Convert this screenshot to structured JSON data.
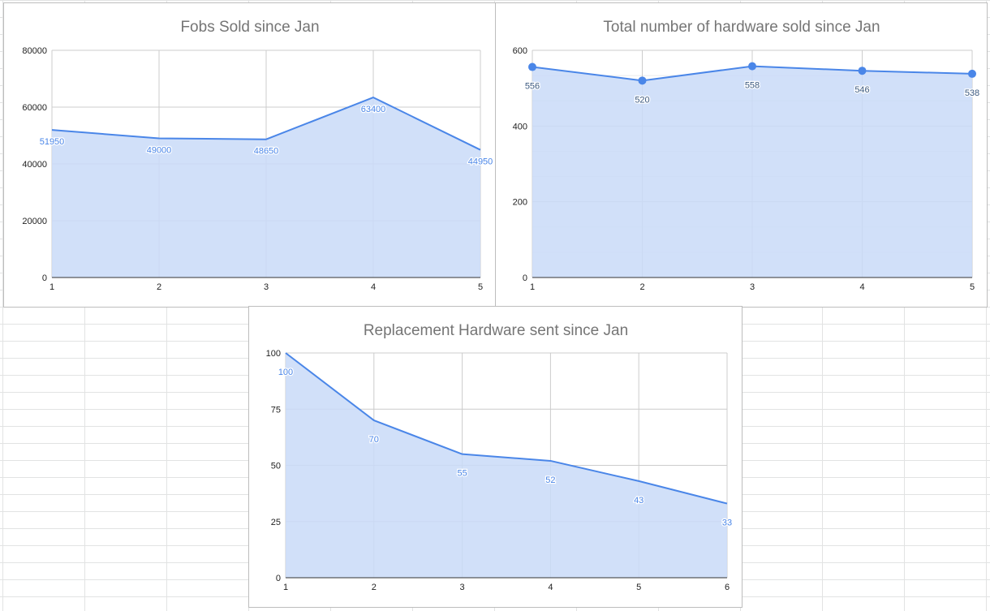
{
  "charts": [
    {
      "type": "area",
      "title": "Fobs Sold since Jan",
      "x": [
        1,
        2,
        3,
        4,
        5
      ],
      "values": [
        51950,
        49000,
        48650,
        63400,
        44950
      ],
      "data_labels": [
        "51950",
        "49000",
        "48650",
        "63400",
        "44950"
      ],
      "x_tick_labels": [
        "1",
        "2",
        "3",
        "4",
        "5"
      ],
      "y_tick_labels": [
        "0",
        "20000",
        "40000",
        "60000",
        "80000"
      ],
      "y_ticks": [
        0,
        20000,
        40000,
        60000,
        80000
      ],
      "ylim": [
        0,
        80000
      ],
      "minor_y_gridlines": false,
      "markers": false,
      "grid": true,
      "legend": "none",
      "line_color": "#4a86e8",
      "fill_color": "#c9daf8",
      "label_color": "#4a86e8"
    },
    {
      "type": "area",
      "title": "Total number of hardware sold since Jan",
      "x": [
        1,
        2,
        3,
        4,
        5
      ],
      "values": [
        556,
        520,
        558,
        546,
        538
      ],
      "data_labels": [
        "556",
        "520",
        "558",
        "546",
        "538"
      ],
      "x_tick_labels": [
        "1",
        "2",
        "3",
        "4",
        "5"
      ],
      "y_tick_labels": [
        "0",
        "200",
        "400",
        "600"
      ],
      "y_ticks": [
        0,
        200,
        400,
        600
      ],
      "ylim": [
        0,
        600
      ],
      "minor_y_gridlines": true,
      "markers": true,
      "grid": true,
      "legend": "none",
      "line_color": "#4a86e8",
      "fill_color": "#c9daf8",
      "label_color": "#3c5a80"
    },
    {
      "type": "area",
      "title": "Replacement Hardware sent since Jan",
      "x": [
        1,
        2,
        3,
        4,
        5,
        6
      ],
      "values": [
        100,
        70,
        55,
        52,
        43,
        33
      ],
      "data_labels": [
        "100",
        "70",
        "55",
        "52",
        "43",
        "33"
      ],
      "x_tick_labels": [
        "1",
        "2",
        "3",
        "4",
        "5",
        "6"
      ],
      "y_tick_labels": [
        "0",
        "25",
        "50",
        "75",
        "100"
      ],
      "y_ticks": [
        0,
        25,
        50,
        75,
        100
      ],
      "ylim": [
        0,
        100
      ],
      "minor_y_gridlines": false,
      "markers": false,
      "grid": true,
      "legend": "none",
      "line_color": "#4a86e8",
      "fill_color": "#c9daf8",
      "label_color": "#4a86e8"
    }
  ]
}
